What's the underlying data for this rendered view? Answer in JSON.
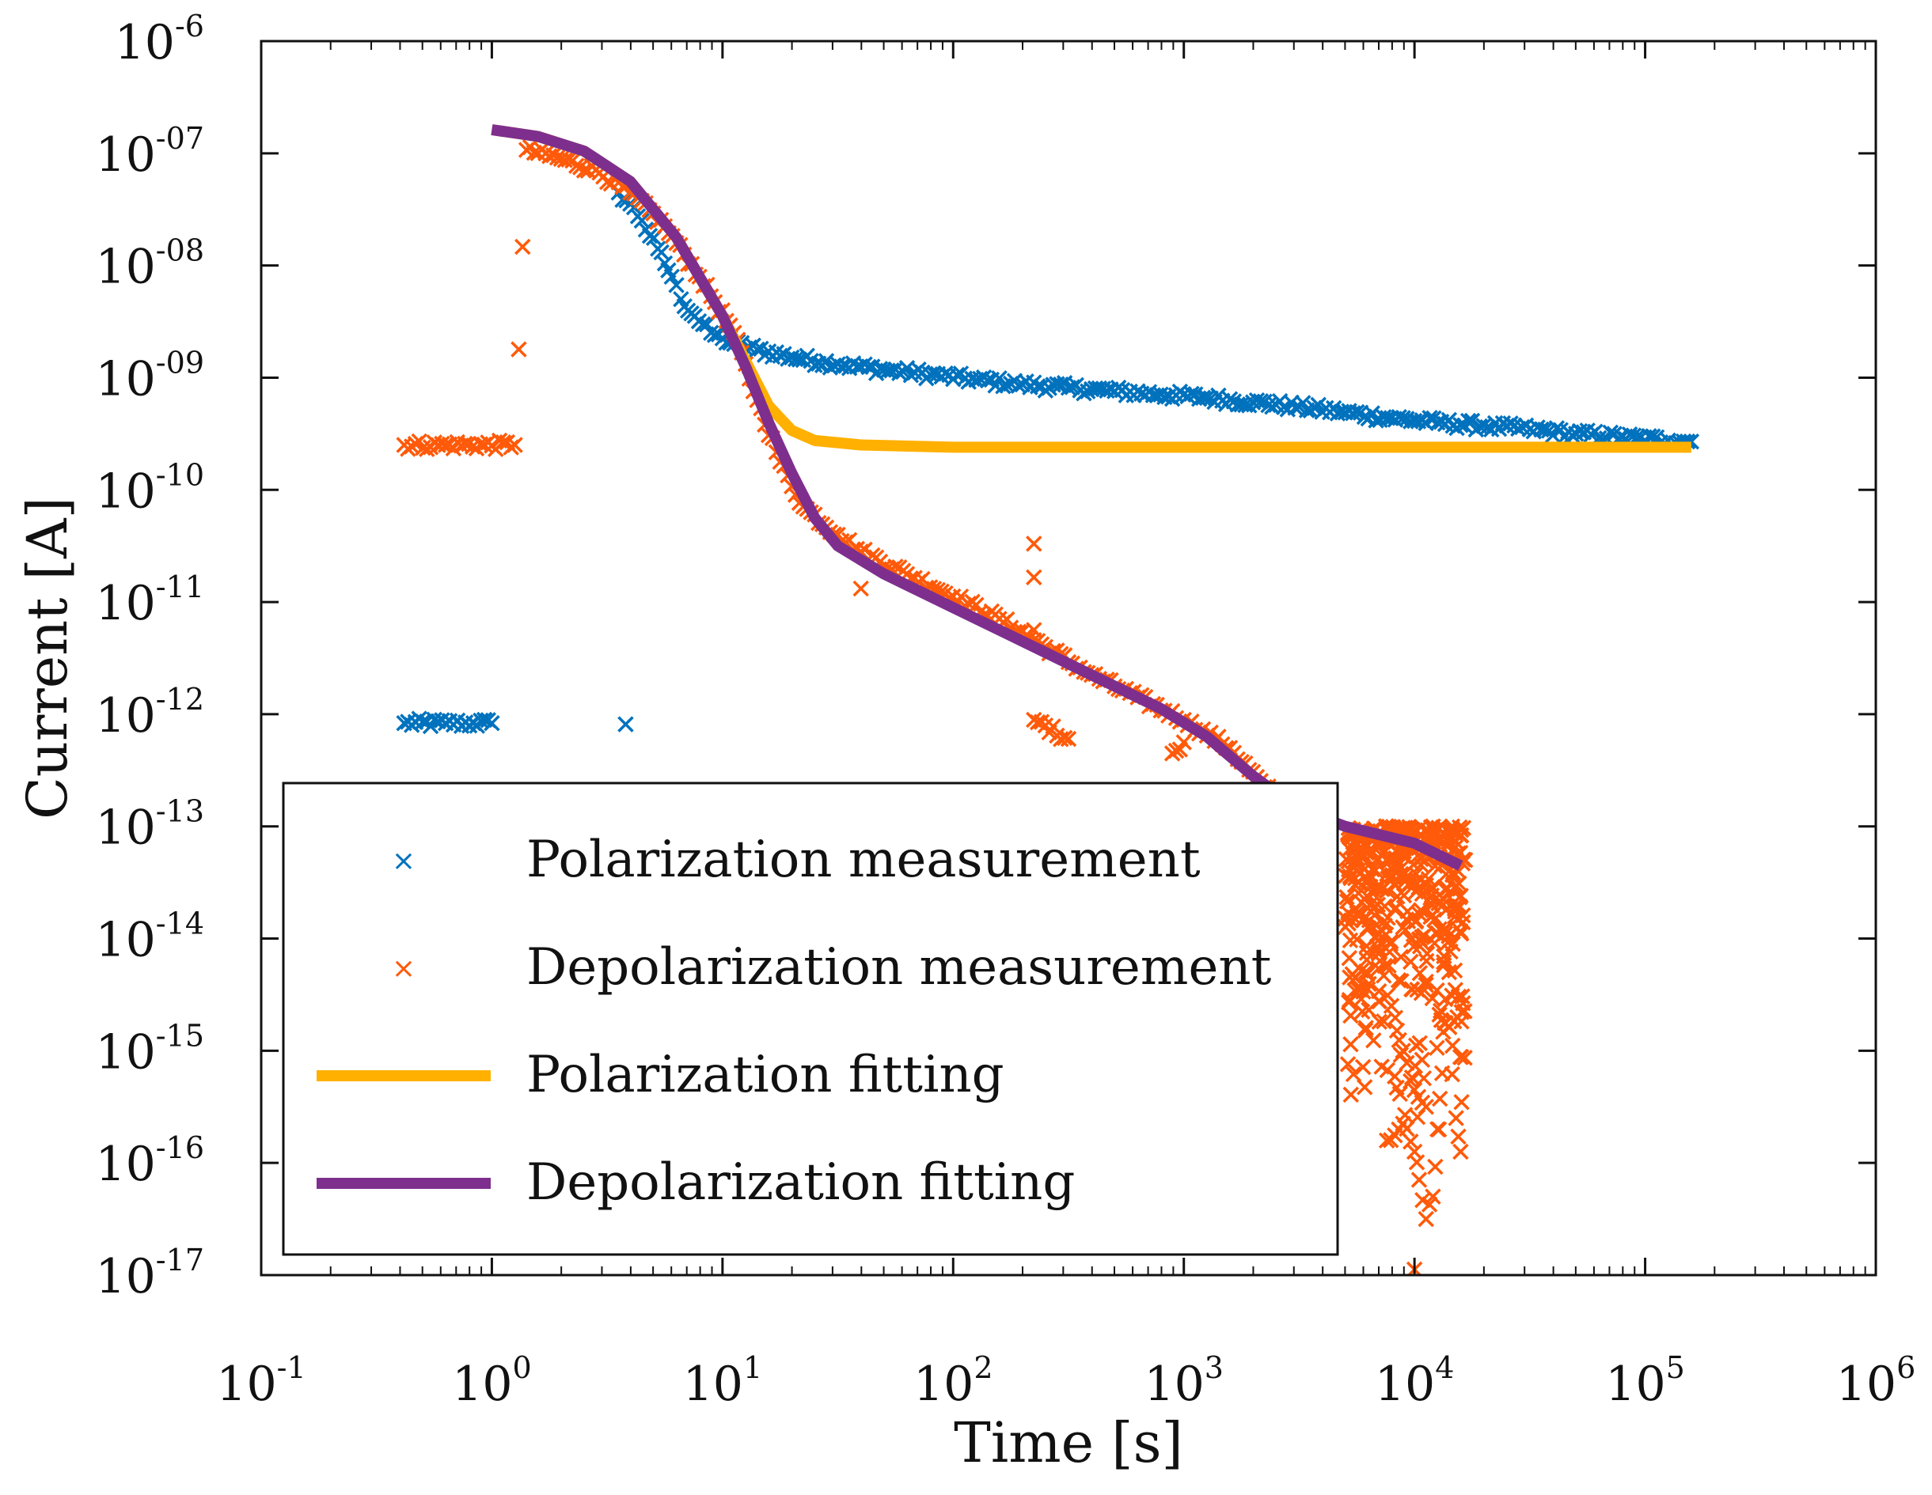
{
  "chart_data": {
    "type": "scatter",
    "title": "",
    "xlabel": "Time [s]",
    "ylabel": "Current [A]",
    "xscale": "log",
    "yscale": "log",
    "xlim_exp": [
      -1,
      6
    ],
    "ylim_exp": [
      -17,
      -6
    ],
    "x_ticks": [
      {
        "base": "10",
        "exp": "-1"
      },
      {
        "base": "10",
        "exp": "0"
      },
      {
        "base": "10",
        "exp": "1"
      },
      {
        "base": "10",
        "exp": "2"
      },
      {
        "base": "10",
        "exp": "3"
      },
      {
        "base": "10",
        "exp": "4"
      },
      {
        "base": "10",
        "exp": "5"
      },
      {
        "base": "10",
        "exp": "6"
      }
    ],
    "y_ticks": [
      {
        "base": "10",
        "exp": "-6"
      },
      {
        "base": "10",
        "exp": "-07"
      },
      {
        "base": "10",
        "exp": "-08"
      },
      {
        "base": "10",
        "exp": "-09"
      },
      {
        "base": "10",
        "exp": "-10"
      },
      {
        "base": "10",
        "exp": "-11"
      },
      {
        "base": "10",
        "exp": "-12"
      },
      {
        "base": "10",
        "exp": "-13"
      },
      {
        "base": "10",
        "exp": "-14"
      },
      {
        "base": "10",
        "exp": "-15"
      },
      {
        "base": "10",
        "exp": "-16"
      },
      {
        "base": "10",
        "exp": "-17"
      }
    ],
    "legend_position": "bottom-left",
    "series": [
      {
        "name": "Polarization measurement",
        "kind": "scatter",
        "color": "#0072BD",
        "points_log10": [
          [
            -0.38,
            -12.08
          ],
          [
            -0.2,
            -12.08
          ],
          [
            -0.08,
            -12.08
          ],
          [
            0.0,
            -12.08
          ],
          [
            0.58,
            -12.09
          ],
          [
            0.55,
            -7.35
          ],
          [
            0.6,
            -7.45
          ],
          [
            0.65,
            -7.6
          ],
          [
            0.72,
            -7.85
          ],
          [
            0.78,
            -8.1
          ],
          [
            0.82,
            -8.3
          ],
          [
            0.88,
            -8.45
          ],
          [
            0.95,
            -8.6
          ],
          [
            1.0,
            -8.65
          ],
          [
            1.05,
            -8.7
          ],
          [
            1.15,
            -8.75
          ],
          [
            1.3,
            -8.82
          ],
          [
            1.5,
            -8.88
          ],
          [
            1.7,
            -8.93
          ],
          [
            1.9,
            -8.97
          ],
          [
            2.1,
            -9.02
          ],
          [
            2.3,
            -9.06
          ],
          [
            2.5,
            -9.09
          ],
          [
            2.7,
            -9.12
          ],
          [
            2.9,
            -9.15
          ],
          [
            3.1,
            -9.18
          ],
          [
            3.3,
            -9.22
          ],
          [
            3.5,
            -9.26
          ],
          [
            3.7,
            -9.31
          ],
          [
            3.9,
            -9.36
          ],
          [
            4.1,
            -9.4
          ],
          [
            4.3,
            -9.43
          ],
          [
            4.5,
            -9.46
          ],
          [
            4.7,
            -9.5
          ],
          [
            4.9,
            -9.53
          ],
          [
            5.1,
            -9.56
          ],
          [
            5.2,
            -9.57
          ]
        ]
      },
      {
        "name": "Depolarization measurement",
        "kind": "scatter",
        "color": "#FF5A0A",
        "points_log10": [
          [
            -0.38,
            -9.6
          ],
          [
            -0.2,
            -9.6
          ],
          [
            0.1,
            -9.6
          ],
          [
            0.15,
            -6.97
          ],
          [
            0.3,
            -7.05
          ],
          [
            0.45,
            -7.15
          ],
          [
            0.6,
            -7.35
          ],
          [
            0.75,
            -7.65
          ],
          [
            0.9,
            -8.1
          ],
          [
            1.05,
            -8.6
          ],
          [
            1.15,
            -9.2
          ],
          [
            1.25,
            -9.75
          ],
          [
            1.35,
            -10.15
          ],
          [
            1.5,
            -10.4
          ],
          [
            1.6,
            -10.55
          ],
          [
            1.8,
            -10.75
          ],
          [
            2.0,
            -10.95
          ],
          [
            2.2,
            -11.15
          ],
          [
            2.4,
            -11.4
          ],
          [
            2.6,
            -11.65
          ],
          [
            2.8,
            -11.85
          ],
          [
            3.0,
            -12.05
          ],
          [
            3.2,
            -12.3
          ],
          [
            3.35,
            -12.65
          ],
          [
            3.5,
            -12.9
          ],
          [
            3.6,
            -13.0
          ],
          [
            1.6,
            -10.88
          ],
          [
            2.35,
            -10.48
          ],
          [
            2.35,
            -10.78
          ],
          [
            2.35,
            -11.25
          ],
          [
            2.35,
            -12.05
          ],
          [
            2.5,
            -12.22
          ],
          [
            2.95,
            -12.35
          ],
          [
            3.0,
            -12.25
          ],
          [
            3.75,
            -13.15
          ],
          [
            3.82,
            -13.6
          ],
          [
            3.85,
            -14.2
          ],
          [
            3.9,
            -14.6
          ],
          [
            3.95,
            -15.0
          ],
          [
            4.0,
            -15.35
          ],
          [
            4.05,
            -15.5
          ],
          [
            3.88,
            -15.8
          ],
          [
            3.95,
            -15.65
          ],
          [
            4.0,
            -15.9
          ],
          [
            4.02,
            -16.15
          ],
          [
            4.05,
            -16.5
          ],
          [
            4.08,
            -16.3
          ],
          [
            4.1,
            -15.7
          ],
          [
            4.12,
            -15.2
          ],
          [
            4.15,
            -14.3
          ],
          [
            4.18,
            -15.6
          ],
          [
            4.2,
            -15.9
          ],
          [
            4.22,
            -13.3
          ],
          [
            4.0,
            -16.95
          ],
          [
            3.95,
            -13.9
          ]
        ]
      },
      {
        "name": "Polarization fitting",
        "kind": "line",
        "color": "#FFB000",
        "points_log10": [
          [
            0.0,
            -6.79
          ],
          [
            0.2,
            -6.85
          ],
          [
            0.4,
            -6.98
          ],
          [
            0.6,
            -7.25
          ],
          [
            0.8,
            -7.75
          ],
          [
            1.0,
            -8.45
          ],
          [
            1.1,
            -8.85
          ],
          [
            1.2,
            -9.25
          ],
          [
            1.3,
            -9.47
          ],
          [
            1.4,
            -9.56
          ],
          [
            1.6,
            -9.6
          ],
          [
            2.0,
            -9.62
          ],
          [
            3.0,
            -9.62
          ],
          [
            4.0,
            -9.62
          ],
          [
            5.2,
            -9.62
          ]
        ]
      },
      {
        "name": "Depolarization fitting",
        "kind": "line",
        "color": "#7E2F8E",
        "points_log10": [
          [
            0.0,
            -6.79
          ],
          [
            0.2,
            -6.85
          ],
          [
            0.4,
            -6.98
          ],
          [
            0.6,
            -7.25
          ],
          [
            0.8,
            -7.75
          ],
          [
            1.0,
            -8.45
          ],
          [
            1.1,
            -8.9
          ],
          [
            1.2,
            -9.4
          ],
          [
            1.3,
            -9.85
          ],
          [
            1.4,
            -10.25
          ],
          [
            1.5,
            -10.5
          ],
          [
            1.7,
            -10.75
          ],
          [
            2.0,
            -11.05
          ],
          [
            2.3,
            -11.35
          ],
          [
            2.6,
            -11.65
          ],
          [
            2.9,
            -11.95
          ],
          [
            3.1,
            -12.2
          ],
          [
            3.3,
            -12.55
          ],
          [
            3.5,
            -12.85
          ],
          [
            3.7,
            -13.0
          ],
          [
            4.0,
            -13.15
          ],
          [
            4.2,
            -13.35
          ]
        ]
      }
    ]
  }
}
